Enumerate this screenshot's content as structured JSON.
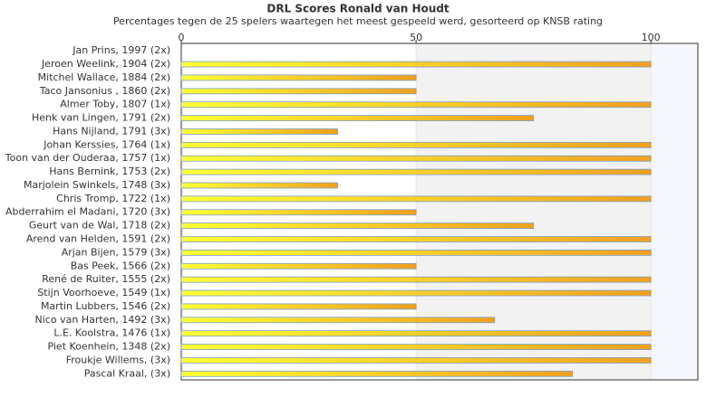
{
  "chart_data": {
    "type": "hbar",
    "title": "DRL Scores Ronald van Houdt",
    "subtitle": "Percentages tegen de 25 spelers waartegen het meest gespeeld werd, gesorteerd op KNSB rating",
    "categories": [
      "Jan Prins, 1997 (2x)",
      "Jeroen Weelink, 1904 (2x)",
      "Mitchel Wallace, 1884 (2x)",
      "Taco Jansonius , 1860 (2x)",
      "Almer Toby, 1807 (1x)",
      "Henk van Lingen, 1791 (2x)",
      "Hans Nijland, 1791 (3x)",
      "Johan Kerssies, 1764 (1x)",
      "Toon van der Ouderaa, 1757 (1x)",
      "Hans Bernink, 1753 (2x)",
      "Marjolein Swinkels, 1748 (3x)",
      "Chris Tromp, 1722 (1x)",
      "Abderrahim el Madani, 1720 (3x)",
      "Geurt van de Wal, 1718 (2x)",
      "Arend van Helden, 1591 (2x)",
      "Arjan Bijen, 1579 (3x)",
      "Bas Peek, 1566 (2x)",
      "René de Ruiter, 1555 (2x)",
      "Stijn Voorhoeve, 1549 (1x)",
      "Martin Lubbers, 1546 (2x)",
      "Nico van Harten, 1492 (3x)",
      "L.E. Koolstra, 1476 (1x)",
      "Piet Koenhein, 1348 (2x)",
      "Froukje Willems,  (3x)",
      "Pascal Kraal,  (3x)"
    ],
    "values": [
      0,
      100,
      50,
      50,
      100,
      75,
      33.3,
      100,
      100,
      100,
      33.3,
      100,
      50,
      75,
      100,
      100,
      50,
      100,
      100,
      50,
      66.7,
      100,
      100,
      100,
      83.3
    ],
    "xlim": [
      0,
      110
    ],
    "xticks": [
      0,
      50,
      100
    ]
  }
}
